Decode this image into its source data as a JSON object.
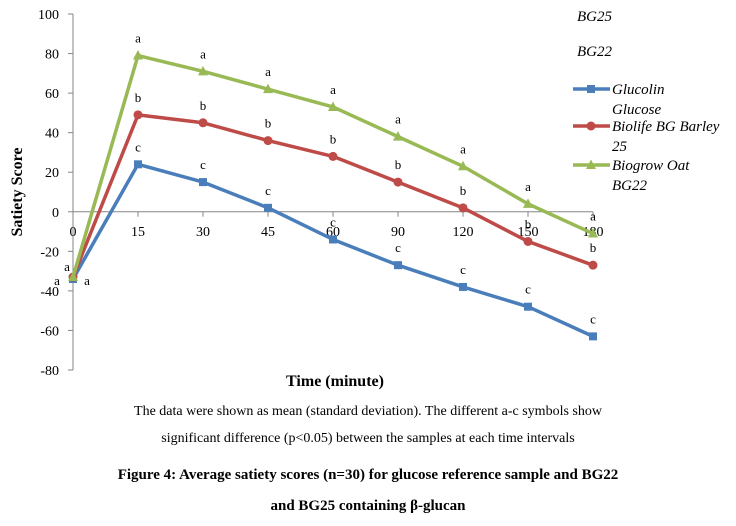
{
  "chart_data": {
    "type": "line",
    "xlabel": "Time (minute)",
    "ylabel": "Satiety Score",
    "categories": [
      "0",
      "15",
      "30",
      "45",
      "60",
      "90",
      "120",
      "150",
      "180"
    ],
    "yticks": [
      "100",
      "80",
      "60",
      "40",
      "20",
      "0",
      "-20",
      "-40",
      "-60",
      "-80"
    ],
    "ylim": [
      -80,
      100
    ],
    "grid": false,
    "legend_position": "right",
    "extra_labels": [
      "BG25",
      "BG22"
    ],
    "series": [
      {
        "name": "Glucolin Glucose",
        "legend_lines": [
          "Glucolin",
          "Glucose"
        ],
        "color": "#4a7ebb",
        "marker": "square",
        "values": [
          -34,
          24,
          15,
          2,
          -14,
          -27,
          -38,
          -48,
          -63
        ],
        "letters": [
          "a",
          "c",
          "c",
          "c",
          "c",
          "c",
          "c",
          "c",
          "c"
        ]
      },
      {
        "name": "Biolife BG Barley 25",
        "legend_lines": [
          "Biolife BG Barley",
          "25"
        ],
        "color": "#be4b48",
        "marker": "circle",
        "values": [
          -33,
          49,
          45,
          36,
          28,
          15,
          2,
          -15,
          -27
        ],
        "letters": [
          "a",
          "b",
          "b",
          "b",
          "b",
          "b",
          "b",
          "b",
          "b"
        ]
      },
      {
        "name": "Biogrow Oat BG22",
        "legend_lines": [
          "Biogrow Oat",
          "BG22"
        ],
        "color": "#98b954",
        "marker": "triangle",
        "values": [
          -33,
          79,
          71,
          62,
          53,
          38,
          23,
          4,
          -11
        ],
        "letters": [
          "a",
          "a",
          "a",
          "a",
          "a",
          "a",
          "a",
          "a",
          "a"
        ]
      }
    ]
  },
  "note": {
    "line1": "The data were shown as mean (standard deviation). The different a-c symbols show",
    "line2": "significant difference (p<0.05) between the samples at each time intervals"
  },
  "caption": {
    "line1": "Figure 4: Average satiety scores (n=30) for glucose reference sample and BG22",
    "line2": "and BG25 containing β-glucan"
  }
}
